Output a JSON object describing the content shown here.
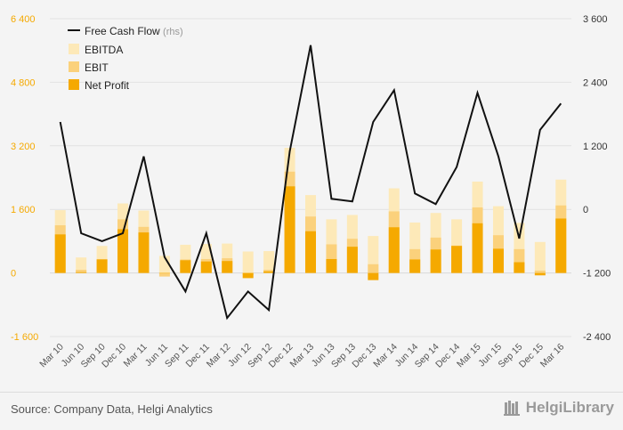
{
  "chart_data": {
    "type": "bar+line",
    "categories": [
      "Mar 10",
      "Jun 10",
      "Sep 10",
      "Dec 10",
      "Mar 11",
      "Jun 11",
      "Sep 11",
      "Dec 11",
      "Mar 12",
      "Jun 12",
      "Sep 12",
      "Dec 12",
      "Mar 13",
      "Jun 13",
      "Sep 13",
      "Dec 13",
      "Mar 14",
      "Jun 14",
      "Sep 14",
      "Dec 14",
      "Mar 15",
      "Jun 15",
      "Sep 15",
      "Dec 15",
      "Mar 16"
    ],
    "series": [
      {
        "name": "EBITDA",
        "axis": "left",
        "type": "bar",
        "color": "#fde9b8",
        "values": [
          1580,
          390,
          680,
          1750,
          1570,
          430,
          710,
          730,
          740,
          540,
          550,
          3150,
          1960,
          1350,
          1460,
          930,
          2130,
          1270,
          1510,
          1350,
          2300,
          1680,
          1260,
          780,
          2350
        ]
      },
      {
        "name": "EBIT",
        "axis": "left",
        "type": "bar",
        "color": "#fbd17c",
        "values": [
          1200,
          80,
          350,
          1350,
          1160,
          -90,
          340,
          350,
          370,
          -50,
          80,
          2550,
          1420,
          720,
          860,
          220,
          1550,
          600,
          890,
          690,
          1650,
          950,
          600,
          60,
          1700
        ]
      },
      {
        "name": "Net Profit",
        "axis": "left",
        "type": "bar",
        "color": "#f5a900",
        "values": [
          970,
          20,
          340,
          1100,
          1020,
          0,
          320,
          290,
          300,
          -130,
          40,
          2180,
          1050,
          350,
          660,
          -180,
          1150,
          340,
          590,
          680,
          1250,
          610,
          270,
          -60,
          1370
        ]
      },
      {
        "name": "Free Cash Flow",
        "axis": "right",
        "type": "line",
        "color": "#111111",
        "unit": "(rhs)",
        "values": [
          1650,
          -450,
          -600,
          -450,
          1000,
          -900,
          -1550,
          -450,
          -2050,
          -1550,
          -1900,
          1100,
          3100,
          200,
          150,
          1650,
          2250,
          300,
          100,
          800,
          2200,
          1000,
          -550,
          1500,
          2000
        ]
      }
    ],
    "legend": [
      "Free Cash Flow",
      "(rhs)",
      "EBITDA",
      "EBIT",
      "Net Profit"
    ],
    "y_left": {
      "min": -1600,
      "max": 6400,
      "ticks": [
        "6 400",
        "4 800",
        "3 200",
        "1 600",
        "0",
        "-1 600"
      ],
      "tick_values": [
        6400,
        4800,
        3200,
        1600,
        0,
        -1600
      ]
    },
    "y_right": {
      "min": -2400,
      "max": 3600,
      "ticks": [
        "3 600",
        "2 400",
        "1 200",
        "0",
        "-1 200",
        "-2 400"
      ],
      "tick_values": [
        3600,
        2400,
        1200,
        0,
        -1200,
        -2400
      ]
    },
    "left_axis_color": "#f5a900",
    "right_axis_color": "#333333"
  },
  "footer": {
    "source": "Source: Company Data, Helgi Analytics",
    "brand": "HelgiLibrary"
  }
}
